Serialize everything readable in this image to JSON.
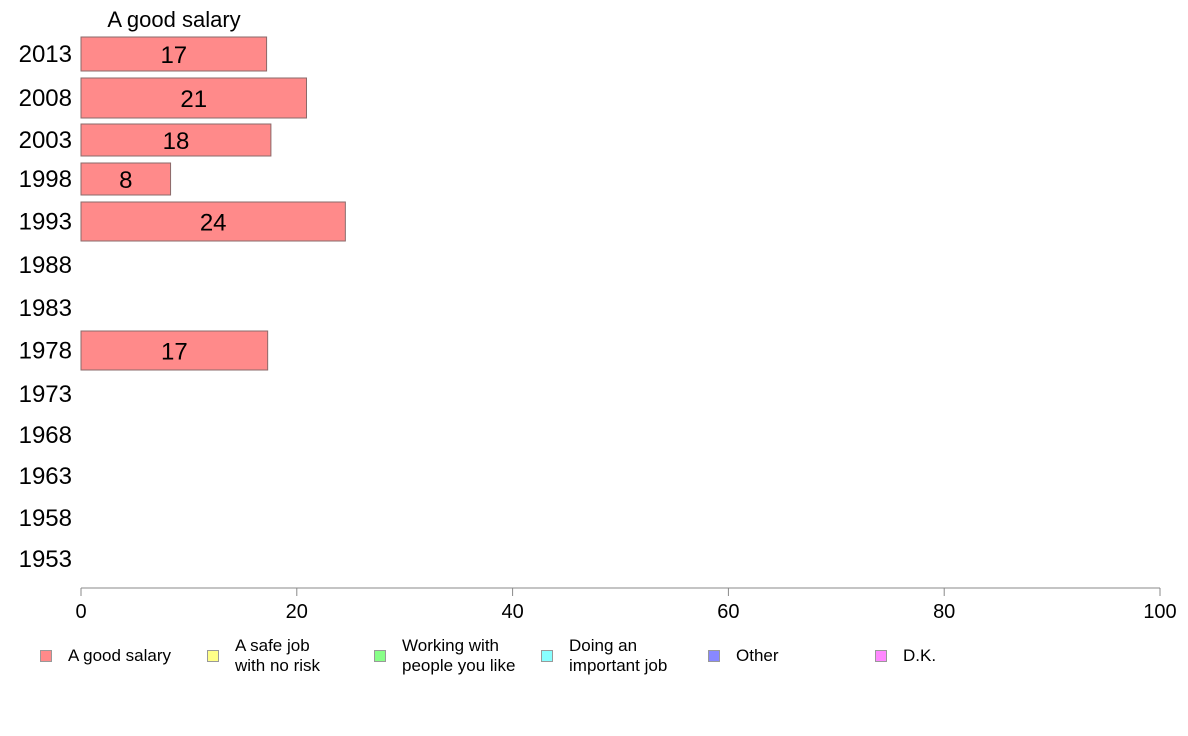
{
  "chart_data": {
    "type": "bar",
    "orientation": "horizontal",
    "title": "A good salary",
    "categories": [
      "2013",
      "2008",
      "2003",
      "1998",
      "1993",
      "1988",
      "1983",
      "1978",
      "1973",
      "1968",
      "1963",
      "1958",
      "1953"
    ],
    "series": [
      {
        "name": "A good salary",
        "color": "#ff8a8a",
        "values": [
          17.2,
          20.9,
          17.6,
          8.3,
          24.5,
          null,
          null,
          17.3,
          null,
          null,
          null,
          null,
          null
        ],
        "labels": [
          "17",
          "21",
          "18",
          "8",
          "24",
          "",
          "",
          "17",
          "",
          "",
          "",
          "",
          ""
        ]
      }
    ],
    "xlim": [
      0,
      100
    ],
    "xticks": [
      "0",
      "20",
      "40",
      "60",
      "80",
      "100"
    ],
    "grid": false,
    "legend_position": "bottom"
  },
  "legend": [
    {
      "label": "A good salary",
      "color": "#ff8a8a"
    },
    {
      "label": "A safe job\nwith no risk",
      "color": "#ffff88"
    },
    {
      "label": "Working with\npeople you like",
      "color": "#88ff88"
    },
    {
      "label": "Doing an\nimportant job",
      "color": "#88ffff"
    },
    {
      "label": "Other",
      "color": "#8888ff"
    },
    {
      "label": "D.K.",
      "color": "#ff88ff"
    }
  ]
}
